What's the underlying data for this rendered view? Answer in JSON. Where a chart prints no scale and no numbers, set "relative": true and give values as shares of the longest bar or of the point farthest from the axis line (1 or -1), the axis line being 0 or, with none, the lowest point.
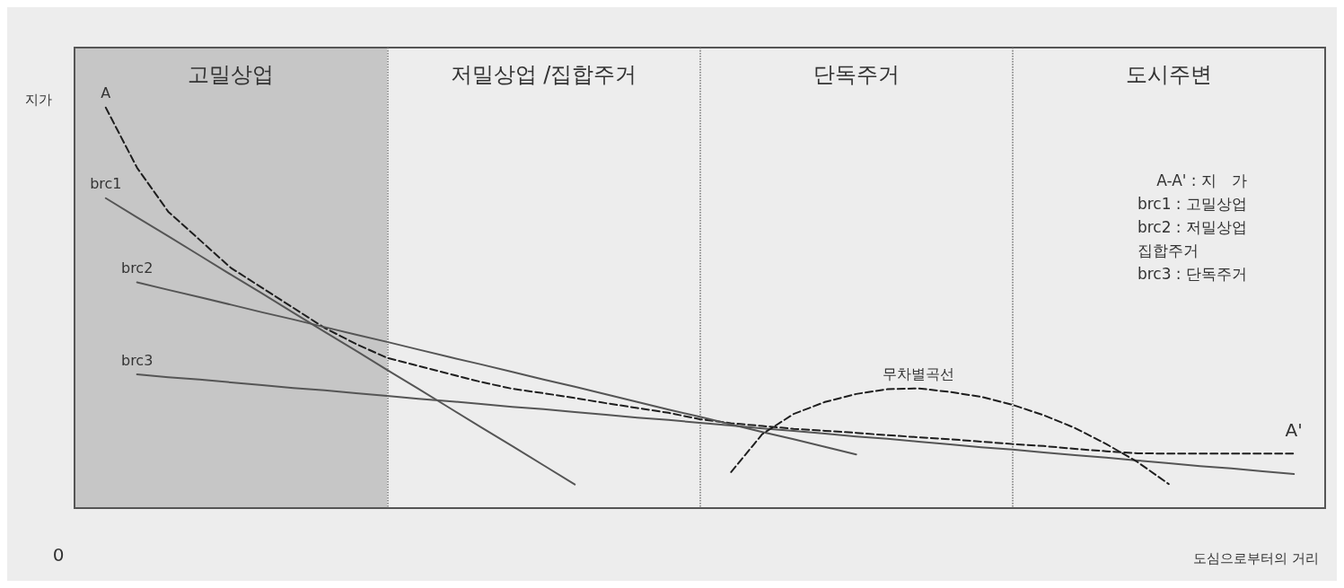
{
  "chart_data": {
    "type": "line",
    "relative": true,
    "xlabel": "도심으로부터의 거리",
    "ylabel": "지가",
    "grid": "x",
    "legend": false,
    "marker": "none",
    "categories": [
      null,
      null,
      null,
      null,
      null,
      null,
      null,
      null,
      null,
      null,
      null,
      null,
      null,
      null,
      null,
      null,
      null,
      null,
      null,
      null,
      null,
      null,
      null,
      null,
      null,
      null,
      null,
      null,
      null,
      null,
      null,
      null,
      null,
      null,
      null,
      null,
      null,
      null,
      null,
      null,
      null
    ],
    "series": [
      {
        "name": "A",
        "color": "#1e1e1e",
        "line_style": "dashed",
        "values": [
          null,
          1.0,
          0.85,
          0.74,
          0.67,
          0.6,
          0.55,
          0.5,
          0.45,
          0.41,
          0.375,
          0.355,
          0.335,
          0.315,
          0.298,
          0.287,
          0.275,
          0.262,
          0.25,
          0.238,
          0.222,
          0.212,
          0.205,
          0.198,
          0.193,
          0.188,
          0.182,
          0.177,
          0.172,
          0.166,
          0.16,
          0.155,
          0.148,
          0.142,
          0.137,
          0.136,
          0.136,
          0.136,
          0.136,
          0.136,
          null
        ]
      },
      {
        "name": "brc1",
        "color": "#555555",
        "line_style": "solid",
        "values": [
          null,
          0.774,
          0.726,
          0.679,
          0.631,
          0.583,
          0.536,
          0.488,
          0.44,
          0.393,
          0.345,
          0.298,
          0.25,
          0.202,
          0.155,
          0.107,
          0.059,
          null,
          null,
          null,
          null,
          null,
          null,
          null,
          null,
          null,
          null,
          null,
          null,
          null,
          null,
          null,
          null,
          null,
          null,
          null,
          null,
          null,
          null,
          null,
          null
        ]
      },
      {
        "name": "brc2",
        "color": "#555555",
        "line_style": "solid",
        "values": [
          null,
          null,
          0.564,
          0.545,
          0.527,
          0.508,
          0.489,
          0.471,
          0.452,
          0.433,
          0.415,
          0.396,
          0.377,
          0.359,
          0.34,
          0.321,
          0.303,
          0.284,
          0.265,
          0.246,
          0.228,
          0.209,
          0.19,
          0.172,
          0.153,
          0.134,
          null,
          null,
          null,
          null,
          null,
          null,
          null,
          null,
          null,
          null,
          null,
          null,
          null,
          null,
          null
        ]
      },
      {
        "name": "brc3",
        "color": "#555555",
        "line_style": "solid",
        "values": [
          null,
          null,
          0.334,
          0.327,
          0.321,
          0.314,
          0.307,
          0.3,
          0.294,
          0.287,
          0.28,
          0.273,
          0.267,
          0.26,
          0.253,
          0.247,
          0.24,
          0.233,
          0.226,
          0.22,
          0.213,
          0.206,
          0.199,
          0.193,
          0.186,
          0.179,
          0.173,
          0.166,
          0.159,
          0.152,
          0.146,
          0.139,
          0.132,
          0.126,
          0.119,
          0.112,
          0.105,
          0.099,
          0.092,
          0.085,
          null
        ]
      },
      {
        "name": "무차별곡선",
        "color": "#1e1e1e",
        "line_style": "dashed",
        "values": [
          null,
          null,
          null,
          null,
          null,
          null,
          null,
          null,
          null,
          null,
          null,
          null,
          null,
          null,
          null,
          null,
          null,
          null,
          null,
          null,
          null,
          0.09,
          0.185,
          0.235,
          0.265,
          0.285,
          0.297,
          0.299,
          0.29,
          0.278,
          0.258,
          0.232,
          0.2,
          0.16,
          0.115,
          0.06,
          null,
          null,
          null,
          null,
          null
        ]
      }
    ],
    "annotations": [
      "고밀상업",
      "저밀상업 /집합주거",
      "단독주거",
      "도시주변",
      "A-A' : 지　가",
      "brc1 : 고밀상업",
      "brc2 : 저밀상업\n집합주거",
      "brc3 : 단독주거",
      {
        "text": "A'"
      },
      "0"
    ]
  }
}
